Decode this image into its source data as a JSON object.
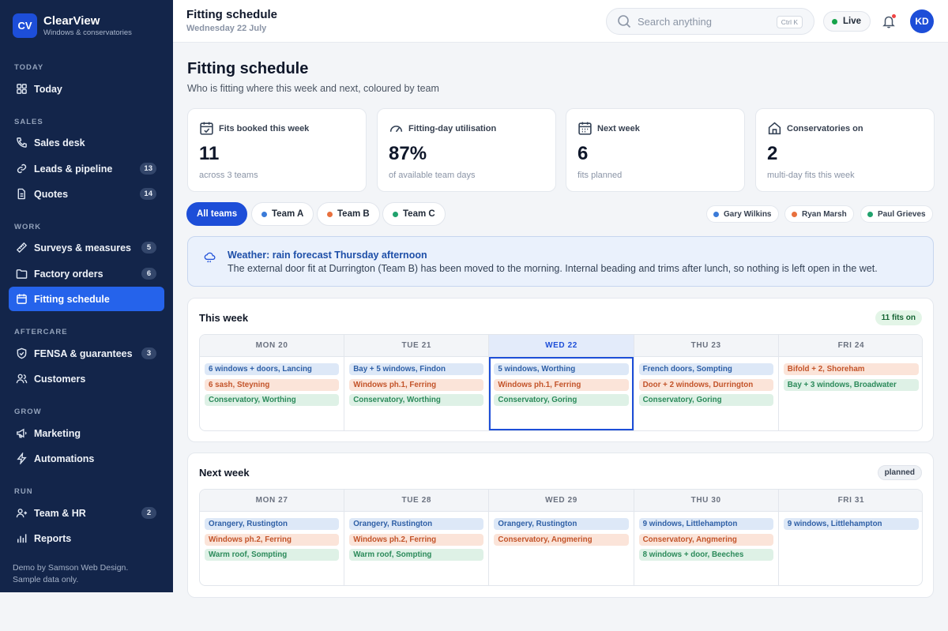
{
  "brand": {
    "logo": "CV",
    "name": "ClearView",
    "tagline": "Windows & conservatories"
  },
  "sidebar": {
    "sections": [
      {
        "label": "TODAY",
        "items": [
          {
            "label": "Today",
            "icon": "grid-icon"
          }
        ]
      },
      {
        "label": "SALES",
        "items": [
          {
            "label": "Sales desk",
            "icon": "phone-icon"
          },
          {
            "label": "Leads & pipeline",
            "icon": "link-icon",
            "badge": "13"
          },
          {
            "label": "Quotes",
            "icon": "document-icon",
            "badge": "14"
          }
        ]
      },
      {
        "label": "WORK",
        "items": [
          {
            "label": "Surveys & measures",
            "icon": "ruler-icon",
            "badge": "5"
          },
          {
            "label": "Factory orders",
            "icon": "folder-icon",
            "badge": "6"
          },
          {
            "label": "Fitting schedule",
            "icon": "calendar-icon",
            "active": true
          }
        ]
      },
      {
        "label": "AFTERCARE",
        "items": [
          {
            "label": "FENSA & guarantees",
            "icon": "shield-icon",
            "badge": "3"
          },
          {
            "label": "Customers",
            "icon": "users-icon"
          }
        ]
      },
      {
        "label": "GROW",
        "items": [
          {
            "label": "Marketing",
            "icon": "megaphone-icon"
          },
          {
            "label": "Automations",
            "icon": "bolt-icon"
          }
        ]
      },
      {
        "label": "RUN",
        "items": [
          {
            "label": "Team & HR",
            "icon": "team-icon",
            "badge": "2"
          },
          {
            "label": "Reports",
            "icon": "bar-chart-icon"
          }
        ]
      }
    ],
    "footer": [
      "Demo by Samson Web Design.",
      "Sample data only."
    ]
  },
  "topbar": {
    "title": "Fitting schedule",
    "date": "Wednesday 22 July",
    "search_placeholder": "Search anything",
    "search_shortcut": "Ctrl K",
    "live_label": "Live",
    "avatar_initials": "KD"
  },
  "page": {
    "title": "Fitting schedule",
    "subtitle": "Who is fitting where this week and next, coloured by team"
  },
  "stats": [
    {
      "label": "Fits booked this week",
      "value": "11",
      "note": "across 3 teams",
      "icon": "calendar-check-icon"
    },
    {
      "label": "Fitting-day utilisation",
      "value": "87%",
      "note": "of available team days",
      "icon": "gauge-icon"
    },
    {
      "label": "Next week",
      "value": "6",
      "note": "fits planned",
      "icon": "calendar-icon"
    },
    {
      "label": "Conservatories on",
      "value": "2",
      "note": "multi-day fits this week",
      "icon": "house-icon"
    }
  ],
  "filters": [
    "All teams",
    "Team A",
    "Team B",
    "Team C"
  ],
  "fitters": [
    "Gary Wilkins",
    "Ryan Marsh",
    "Paul Grieves"
  ],
  "alert": {
    "title": "Weather: rain forecast Thursday afternoon",
    "body": "The external door fit at Durrington (Team B) has been moved to the morning. Internal beading and trims after lunch, so nothing is left open in the wet.",
    "icon": "cloud-rain-icon"
  },
  "weeks": [
    {
      "title": "This week",
      "badge": "11 fits on",
      "days": [
        {
          "label": "MON 20",
          "jobs": [
            {
              "team": "a",
              "text": "6 windows + doors, Lancing"
            },
            {
              "team": "b",
              "text": "6 sash, Steyning"
            },
            {
              "team": "c",
              "text": "Conservatory, Worthing"
            }
          ]
        },
        {
          "label": "TUE 21",
          "jobs": [
            {
              "team": "a",
              "text": "Bay + 5 windows, Findon"
            },
            {
              "team": "b",
              "text": "Windows ph.1, Ferring"
            },
            {
              "team": "c",
              "text": "Conservatory, Worthing"
            }
          ]
        },
        {
          "label": "WED 22",
          "today": true,
          "jobs": [
            {
              "team": "a",
              "text": "5 windows, Worthing"
            },
            {
              "team": "b",
              "text": "Windows ph.1, Ferring"
            },
            {
              "team": "c",
              "text": "Conservatory, Goring"
            }
          ]
        },
        {
          "label": "THU 23",
          "jobs": [
            {
              "team": "a",
              "text": "French doors, Sompting"
            },
            {
              "team": "b",
              "text": "Door + 2 windows, Durrington"
            },
            {
              "team": "c",
              "text": "Conservatory, Goring"
            }
          ]
        },
        {
          "label": "FRI 24",
          "jobs": [
            {
              "team": "b",
              "text": "Bifold + 2, Shoreham"
            },
            {
              "team": "c",
              "text": "Bay + 3 windows, Broadwater"
            }
          ]
        }
      ]
    },
    {
      "title": "Next week",
      "badge": "planned",
      "days": [
        {
          "label": "MON 27",
          "jobs": [
            {
              "team": "a",
              "text": "Orangery, Rustington"
            },
            {
              "team": "b",
              "text": "Windows ph.2, Ferring"
            },
            {
              "team": "c",
              "text": "Warm roof, Sompting"
            }
          ]
        },
        {
          "label": "TUE 28",
          "jobs": [
            {
              "team": "a",
              "text": "Orangery, Rustington"
            },
            {
              "team": "b",
              "text": "Windows ph.2, Ferring"
            },
            {
              "team": "c",
              "text": "Warm roof, Sompting"
            }
          ]
        },
        {
          "label": "WED 29",
          "jobs": [
            {
              "team": "a",
              "text": "Orangery, Rustington"
            },
            {
              "team": "b",
              "text": "Conservatory, Angmering"
            }
          ]
        },
        {
          "label": "THU 30",
          "jobs": [
            {
              "team": "a",
              "text": "9 windows, Littlehampton"
            },
            {
              "team": "b",
              "text": "Conservatory, Angmering"
            },
            {
              "team": "c",
              "text": "8 windows + door, Beeches"
            }
          ]
        },
        {
          "label": "FRI 31",
          "jobs": [
            {
              "team": "a",
              "text": "9 windows, Littlehampton"
            }
          ]
        }
      ]
    }
  ]
}
